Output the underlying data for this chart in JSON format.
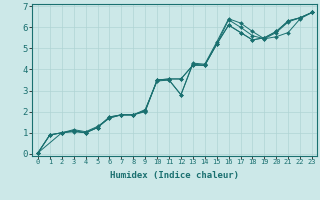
{
  "xlabel": "Humidex (Indice chaleur)",
  "ylabel": "",
  "bg_color": "#cce8e8",
  "grid_color": "#b0d4d4",
  "line_color": "#1a7070",
  "xlim": [
    -0.5,
    23.4
  ],
  "ylim": [
    -0.1,
    7.1
  ],
  "xticks": [
    0,
    1,
    2,
    3,
    4,
    5,
    6,
    7,
    8,
    9,
    10,
    11,
    12,
    13,
    14,
    15,
    16,
    17,
    18,
    19,
    20,
    21,
    22,
    23
  ],
  "yticks": [
    0,
    1,
    2,
    3,
    4,
    5,
    6,
    7
  ],
  "series": [
    {
      "x": [
        0,
        1,
        2,
        3,
        4,
        5,
        6,
        7,
        8,
        9,
        10,
        11,
        12,
        13,
        14,
        15,
        16,
        17,
        18,
        19,
        20,
        21,
        22,
        23
      ],
      "y": [
        0.05,
        0.9,
        1.0,
        1.1,
        1.0,
        1.25,
        1.75,
        1.85,
        1.85,
        2.05,
        3.5,
        3.55,
        3.55,
        4.2,
        4.2,
        5.2,
        6.1,
        5.75,
        5.4,
        5.5,
        5.8,
        6.3,
        6.45,
        6.7
      ]
    },
    {
      "x": [
        0,
        1,
        2,
        3,
        4,
        5,
        6,
        7,
        8,
        9,
        10,
        11,
        12,
        13,
        14,
        15,
        16,
        17,
        18,
        19,
        20,
        21,
        22,
        23
      ],
      "y": [
        0.05,
        0.9,
        1.0,
        1.15,
        1.05,
        1.3,
        1.7,
        1.85,
        1.85,
        2.1,
        3.45,
        3.5,
        2.8,
        4.3,
        4.25,
        5.3,
        6.4,
        6.2,
        5.8,
        5.45,
        5.55,
        5.75,
        6.4,
        6.7
      ]
    },
    {
      "x": [
        0,
        1,
        2,
        3,
        4,
        5,
        6,
        7,
        8,
        9,
        10,
        11,
        12,
        13,
        14,
        15,
        16,
        17,
        18,
        19,
        20,
        21,
        22,
        23
      ],
      "y": [
        0.05,
        0.9,
        1.0,
        1.1,
        1.0,
        1.25,
        1.75,
        1.85,
        1.85,
        2.05,
        3.5,
        3.55,
        3.55,
        4.2,
        4.2,
        5.2,
        6.1,
        5.75,
        5.4,
        5.5,
        5.8,
        6.3,
        6.45,
        6.7
      ]
    },
    {
      "x": [
        0,
        2,
        3,
        4,
        5,
        6,
        7,
        8,
        9,
        10,
        11,
        12,
        13,
        14,
        15,
        16,
        17,
        18,
        19,
        20,
        21,
        22,
        23
      ],
      "y": [
        0.05,
        1.0,
        1.05,
        1.0,
        1.25,
        1.7,
        1.85,
        1.85,
        2.0,
        3.5,
        3.5,
        2.8,
        4.25,
        4.2,
        5.2,
        6.35,
        6.0,
        5.6,
        5.45,
        5.75,
        6.25,
        6.45,
        6.7
      ]
    }
  ]
}
